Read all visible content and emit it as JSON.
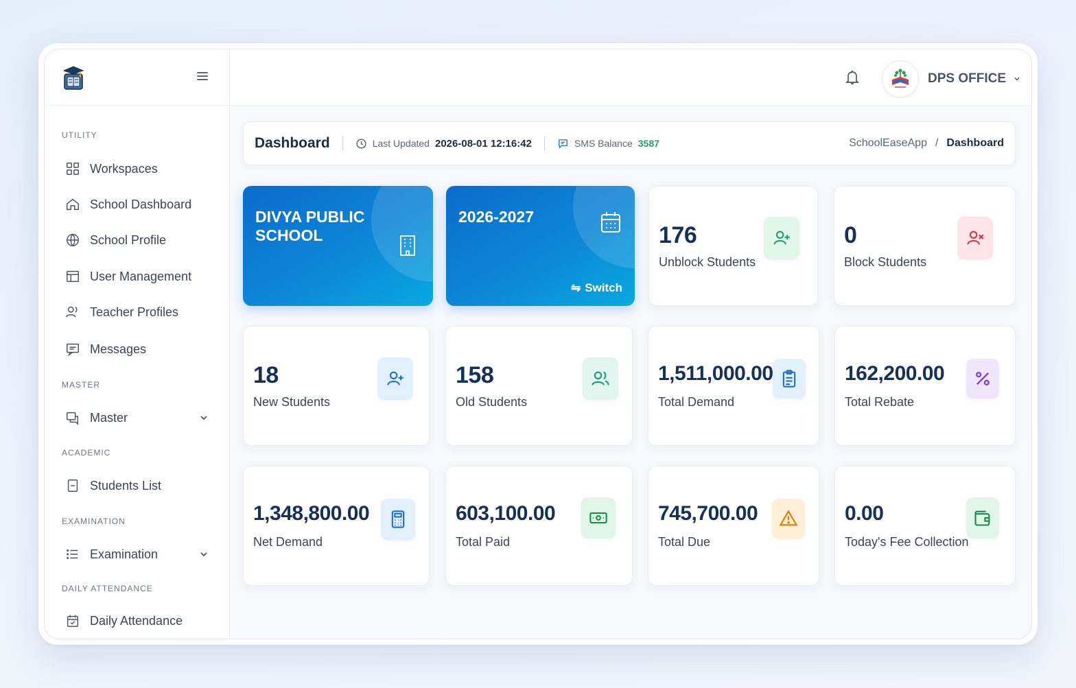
{
  "sidebar": {
    "sections": {
      "utility": "UTILITY",
      "master": "MASTER",
      "academic": "ACADEMIC",
      "examination": "EXAMINATION",
      "daily_attendance": "DAILY ATTENDANCE"
    },
    "items": {
      "workspaces": "Workspaces",
      "school_dashboard": "School Dashboard",
      "school_profile": "School Profile",
      "user_management": "User Management",
      "teacher_profiles": "Teacher Profiles",
      "messages": "Messages",
      "master": "Master",
      "students_list": "Students List",
      "examination": "Examination",
      "daily_attendance": "Daily Attendance"
    }
  },
  "topbar": {
    "user_name": "DPS OFFICE"
  },
  "header": {
    "title": "Dashboard",
    "last_updated_label": "Last Updated",
    "last_updated_value": "2026-08-01 12:16:42",
    "sms_label": "SMS Balance",
    "sms_value": "3587",
    "breadcrumb_root": "SchoolEaseApp",
    "breadcrumb_sep": "/",
    "breadcrumb_current": "Dashboard"
  },
  "school_card": {
    "name": "DIVYA PUBLIC SCHOOL"
  },
  "session_card": {
    "session": "2026-2027",
    "switch_label": "Switch"
  },
  "stats": {
    "unblock": {
      "value": "176",
      "label": "Unblock Students"
    },
    "block": {
      "value": "0",
      "label": "Block Students"
    },
    "new_students": {
      "value": "18",
      "label": "New Students"
    },
    "old_students": {
      "value": "158",
      "label": "Old Students"
    },
    "total_demand": {
      "value": "1,511,000.00",
      "label": "Total Demand"
    },
    "total_rebate": {
      "value": "162,200.00",
      "label": "Total Rebate"
    },
    "net_demand": {
      "value": "1,348,800.00",
      "label": "Net Demand"
    },
    "total_paid": {
      "value": "603,100.00",
      "label": "Total Paid"
    },
    "total_due": {
      "value": "745,700.00",
      "label": "Total Due"
    },
    "todays_fee": {
      "value": "0.00",
      "label": "Today's Fee Collection"
    }
  },
  "colors": {
    "accent": "#0d7fd4",
    "green": "#22a06b",
    "red": "#d63447",
    "purple": "#7b3fd8",
    "orange": "#e07a00"
  }
}
